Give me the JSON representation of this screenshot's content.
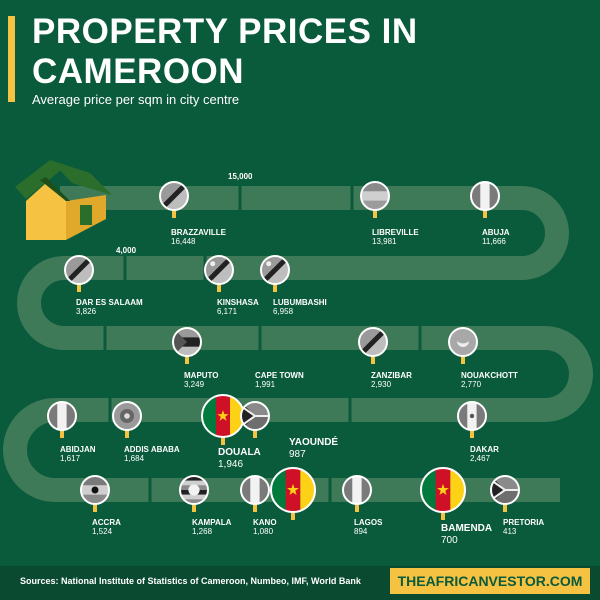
{
  "header": {
    "title_line1": "PROPERTY PRICES IN",
    "title_line2": "CAMEROON",
    "subtitle": "Average price per sqm in city centre"
  },
  "scale_labels": {
    "top": "15,000",
    "mid": "4,000"
  },
  "cities": {
    "brazzaville": {
      "name": "BRAZZAVILLE",
      "price": "16,448",
      "flag": "brazzaville-flag"
    },
    "libreville": {
      "name": "LIBREVILLE",
      "price": "13,981",
      "flag": "libreville-flag"
    },
    "abuja": {
      "name": "ABUJA",
      "price": "11,666",
      "flag": "abuja-flag"
    },
    "dar_es_salaam": {
      "name": "DAR ES SALAAM",
      "price": "3,826",
      "flag": "dar-es-salaam-flag"
    },
    "kinshasa": {
      "name": "KINSHASA",
      "price": "6,171",
      "flag": "kinshasa-flag"
    },
    "lubumbashi": {
      "name": "LUBUMBASHI",
      "price": "6,958",
      "flag": "lubumbashi-flag"
    },
    "maputo": {
      "name": "MAPUTO",
      "price": "3,249",
      "flag": "maputo-flag"
    },
    "cape_town": {
      "name": "CAPE TOWN",
      "price": "1,991",
      "flag": "cape-town-flag"
    },
    "zanzibar": {
      "name": "ZANZIBAR",
      "price": "2,930",
      "flag": "zanzibar-flag"
    },
    "nouakchott": {
      "name": "NOUAKCHOTT",
      "price": "2,770",
      "flag": "nouakchott-flag"
    },
    "abidjan": {
      "name": "ABIDJAN",
      "price": "1,617",
      "flag": "abidjan-flag"
    },
    "addis_ababa": {
      "name": "ADDIS ABABA",
      "price": "1,684",
      "flag": "addis-ababa-flag"
    },
    "douala": {
      "name": "DOUALA",
      "price": "1,946",
      "flag": "douala-flag"
    },
    "yaounde": {
      "name": "YAOUNDÉ",
      "price": "987",
      "flag": "yaounde-flag"
    },
    "dakar": {
      "name": "DAKAR",
      "price": "2,467",
      "flag": "dakar-flag"
    },
    "accra": {
      "name": "ACCRA",
      "price": "1,524",
      "flag": "accra-flag"
    },
    "kampala": {
      "name": "KAMPALA",
      "price": "1,268",
      "flag": "kampala-flag"
    },
    "kano": {
      "name": "KANO",
      "price": "1,080",
      "flag": "kano-flag"
    },
    "lagos": {
      "name": "LAGOS",
      "price": "894",
      "flag": "lagos-flag"
    },
    "bamenda": {
      "name": "BAMENDA",
      "price": "700",
      "flag": "bamenda-flag"
    },
    "pretoria": {
      "name": "PRETORIA",
      "price": "413",
      "flag": "pretoria-flag"
    }
  },
  "footer": {
    "sources": "Sources: National Institute of Statistics of Cameroon, Numbeo, IMF, World Bank",
    "brand": "THEAFRICANVESTOR.COM"
  },
  "colors": {
    "background": "#0a5a3c",
    "road": "#3e7a57",
    "accent": "#f5c242",
    "cameroon_green": "#007a3d",
    "cameroon_red": "#ce1126",
    "cameroon_yellow": "#fcd116"
  }
}
